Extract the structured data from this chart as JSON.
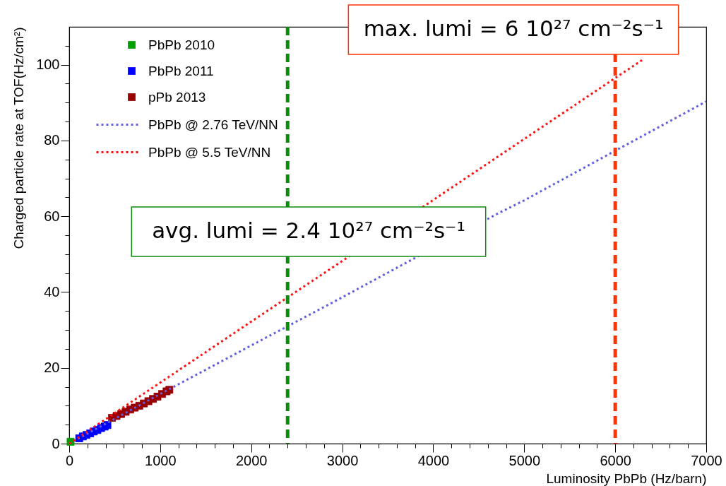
{
  "chart_data": {
    "type": "line",
    "xlabel": "Luminosity PbPb (Hz/barn)",
    "ylabel": "Charged particle rate at TOF(Hz/cm²)",
    "xlim": [
      0,
      7000
    ],
    "ylim": [
      0,
      110
    ],
    "xticks": [
      0,
      {
        "value": 200,
        "label": null
      },
      {
        "value": 400,
        "label": null
      },
      {
        "value": 600,
        "label": null
      },
      {
        "value": 800,
        "label": null
      },
      1000,
      {
        "value": 1200,
        "label": null
      },
      {
        "value": 1400,
        "label": null
      },
      {
        "value": 1600,
        "label": null
      },
      {
        "value": 1800,
        "label": null
      },
      2000,
      {
        "value": 2200,
        "label": null
      },
      {
        "value": 2400,
        "label": null
      },
      {
        "value": 2600,
        "label": null
      },
      {
        "value": 2800,
        "label": null
      },
      3000,
      {
        "value": 3200,
        "label": null
      },
      {
        "value": 3400,
        "label": null
      },
      {
        "value": 3600,
        "label": null
      },
      {
        "value": 3800,
        "label": null
      },
      4000,
      {
        "value": 4200,
        "label": null
      },
      {
        "value": 4400,
        "label": null
      },
      {
        "value": 4600,
        "label": null
      },
      {
        "value": 4800,
        "label": null
      },
      5000,
      {
        "value": 5200,
        "label": null
      },
      {
        "value": 5400,
        "label": null
      },
      {
        "value": 5600,
        "label": null
      },
      {
        "value": 5800,
        "label": null
      },
      6000,
      {
        "value": 6200,
        "label": null
      },
      {
        "value": 6400,
        "label": null
      },
      {
        "value": 6600,
        "label": null
      },
      {
        "value": 6800,
        "label": null
      },
      7000
    ],
    "yticks": [
      0,
      {
        "value": 5,
        "label": null
      },
      {
        "value": 10,
        "label": null
      },
      {
        "value": 15,
        "label": null
      },
      20,
      {
        "value": 25,
        "label": null
      },
      {
        "value": 30,
        "label": null
      },
      {
        "value": 35,
        "label": null
      },
      40,
      {
        "value": 45,
        "label": null
      },
      {
        "value": 50,
        "label": null
      },
      {
        "value": 55,
        "label": null
      },
      60,
      {
        "value": 65,
        "label": null
      },
      {
        "value": 70,
        "label": null
      },
      {
        "value": 75,
        "label": null
      },
      80,
      {
        "value": 85,
        "label": null
      },
      {
        "value": 90,
        "label": null
      },
      {
        "value": 95,
        "label": null
      },
      100,
      {
        "value": 105,
        "label": null
      }
    ],
    "legend": "top left",
    "series": [
      {
        "name": "PbPb 2010",
        "type": "scatter",
        "color": "#00a000",
        "marker": "square",
        "x": [
          15
        ],
        "values": [
          0.5
        ]
      },
      {
        "name": "PbPb 2011",
        "type": "scatter",
        "color": "#0000ff",
        "marker": "square",
        "x": [
          110,
          150,
          190,
          230,
          270,
          310,
          350,
          390,
          420
        ],
        "values": [
          1.4,
          1.9,
          2.3,
          2.7,
          3.2,
          3.6,
          4.1,
          4.5,
          4.9
        ]
      },
      {
        "name": "pPb 2013",
        "type": "scatter",
        "color": "#990000",
        "marker": "square",
        "x": [
          470,
          520,
          570,
          620,
          670,
          720,
          770,
          820,
          870,
          920,
          970,
          1020,
          1070,
          1100
        ],
        "values": [
          6.8,
          7.3,
          7.8,
          8.4,
          9.0,
          9.5,
          10.0,
          10.6,
          11.2,
          11.8,
          12.4,
          13.1,
          13.8,
          14.2
        ]
      },
      {
        "name": "PbPb @ 2.76 TeV/NN",
        "color": "#6060e0",
        "marker": "none",
        "line_style": "dotted",
        "x": [
          0,
          1000,
          2000,
          3000,
          3700,
          4700,
          5000,
          6000,
          7000
        ],
        "values": [
          0,
          13.1,
          25.9,
          38.6,
          47.7,
          60.6,
          64.2,
          77.3,
          90.3
        ]
      },
      {
        "name": "PbPb @ 5.5 TeV/NN",
        "color": "#ff1010",
        "marker": "none",
        "line_style": "dotted",
        "x": [
          0,
          1000,
          2000,
          3000,
          4000,
          5000,
          6000,
          6300
        ],
        "values": [
          0,
          16.1,
          32.2,
          48.2,
          64.3,
          80.4,
          96.5,
          101.3
        ]
      }
    ],
    "ref_lines": [
      {
        "axis": "x",
        "value": 2400,
        "color": "#0c8c0c",
        "line_style": "dashed"
      },
      {
        "axis": "x",
        "value": 6000,
        "color": "#ff3300",
        "line_style": "dashed"
      }
    ],
    "annotations": [
      "avg. lumi = 2.4 10²⁷ cm⁻²s⁻¹",
      "max. lumi = 6 10²⁷ cm⁻²s⁻¹"
    ]
  }
}
